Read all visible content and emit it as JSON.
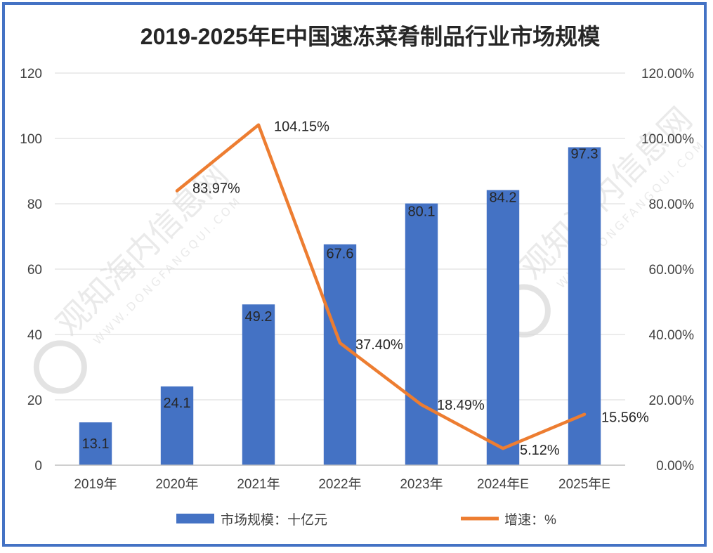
{
  "chart_data": {
    "type": "bar+line",
    "title": "2019-2025年E中国速冻菜肴制品行业市场规模",
    "categories": [
      "2019年",
      "2020年",
      "2021年",
      "2022年",
      "2023年",
      "2024年E",
      "2025年E"
    ],
    "series": [
      {
        "name": "市场规模：十亿元",
        "type": "bar",
        "axis": "left",
        "color": "#4472C4",
        "values": [
          13.1,
          24.1,
          49.2,
          67.6,
          80.1,
          84.2,
          97.3
        ],
        "labels": [
          "13.1",
          "24.1",
          "49.2",
          "67.6",
          "80.1",
          "84.2",
          "97.3"
        ]
      },
      {
        "name": "增速：%",
        "type": "line",
        "axis": "right",
        "color": "#ED7D31",
        "values": [
          null,
          83.97,
          104.15,
          37.4,
          18.49,
          5.12,
          15.56
        ],
        "labels": [
          "",
          "83.97%",
          "104.15%",
          "37.40%",
          "18.49%",
          "5.12%",
          "15.56%"
        ]
      }
    ],
    "left_axis": {
      "min": 0,
      "max": 120,
      "ticks": [
        "0",
        "20",
        "40",
        "60",
        "80",
        "100",
        "120"
      ]
    },
    "right_axis": {
      "min": 0,
      "max": 120,
      "ticks": [
        "0.00%",
        "20.00%",
        "40.00%",
        "60.00%",
        "80.00%",
        "100.00%",
        "120.00%"
      ]
    },
    "grid": true,
    "legend_position": "bottom"
  },
  "watermark": {
    "text": "观知海内信息网",
    "subtext": "WWW.DONGFANGQUI.COM"
  }
}
